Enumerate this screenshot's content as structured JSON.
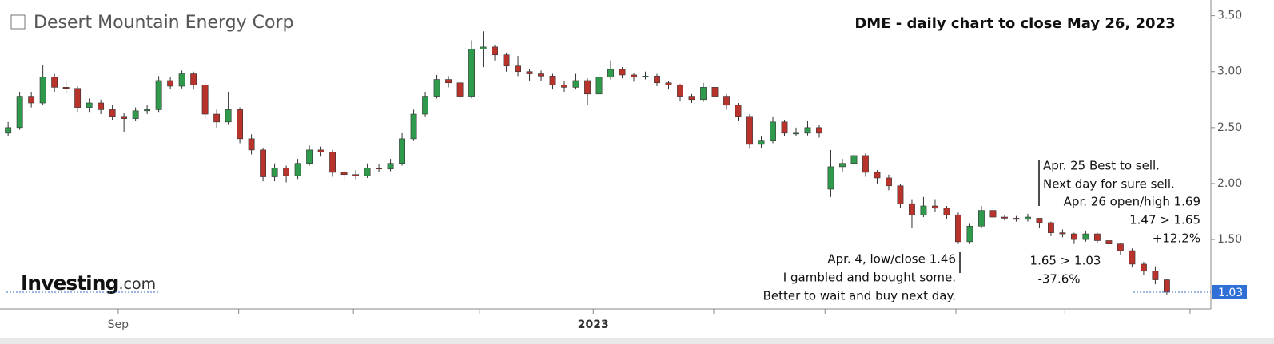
{
  "chart_data": {
    "type": "candlestick",
    "title": "Desert Mountain Energy Corp",
    "subtitle": "DME - daily chart to close May 26, 2023",
    "logo": {
      "name": "Investing",
      "suffix": ".com"
    },
    "up_color": "#2f9a4c",
    "down_color": "#b8332b",
    "ylim": [
      0.88,
      3.64
    ],
    "yticks": [
      {
        "value": 1.5,
        "label": "1.50"
      },
      {
        "value": 2,
        "label": "2.00"
      },
      {
        "value": 2.5,
        "label": "2.50"
      },
      {
        "value": 3,
        "label": "3.00"
      },
      {
        "value": 3.5,
        "label": "3.50"
      }
    ],
    "xlim": [
      -0.7,
      103.8
    ],
    "xticks": [
      {
        "value": 9.5,
        "label": "Sep"
      },
      {
        "value": 19.9,
        "label": null
      },
      {
        "value": 29.8,
        "label": null
      },
      {
        "value": 40.7,
        "label": null
      },
      {
        "value": 50.5,
        "label": "2023"
      },
      {
        "value": 60.9,
        "label": null
      },
      {
        "value": 70.5,
        "label": null
      },
      {
        "value": 81.8,
        "label": null
      },
      {
        "value": 91.2,
        "label": null
      },
      {
        "value": 102,
        "label": null
      }
    ],
    "last_value": 1.03,
    "ohlc": [
      [
        2.45,
        2.55,
        2.42,
        2.5
      ],
      [
        2.5,
        2.82,
        2.48,
        2.78
      ],
      [
        2.78,
        2.82,
        2.68,
        2.72
      ],
      [
        2.72,
        3.06,
        2.7,
        2.95
      ],
      [
        2.95,
        2.98,
        2.82,
        2.86
      ],
      [
        2.86,
        2.92,
        2.8,
        2.85
      ],
      [
        2.85,
        2.87,
        2.64,
        2.68
      ],
      [
        2.68,
        2.76,
        2.64,
        2.72
      ],
      [
        2.72,
        2.75,
        2.62,
        2.66
      ],
      [
        2.66,
        2.7,
        2.57,
        2.6
      ],
      [
        2.6,
        2.63,
        2.46,
        2.58
      ],
      [
        2.58,
        2.68,
        2.56,
        2.65
      ],
      [
        2.65,
        2.7,
        2.62,
        2.66
      ],
      [
        2.66,
        2.96,
        2.64,
        2.92
      ],
      [
        2.92,
        2.95,
        2.84,
        2.87
      ],
      [
        2.87,
        3.01,
        2.85,
        2.98
      ],
      [
        2.98,
        3.0,
        2.84,
        2.88
      ],
      [
        2.88,
        2.9,
        2.58,
        2.62
      ],
      [
        2.62,
        2.66,
        2.5,
        2.55
      ],
      [
        2.55,
        2.82,
        2.53,
        2.66
      ],
      [
        2.66,
        2.68,
        2.36,
        2.4
      ],
      [
        2.4,
        2.44,
        2.26,
        2.3
      ],
      [
        2.3,
        2.32,
        2.02,
        2.06
      ],
      [
        2.06,
        2.18,
        2.02,
        2.14
      ],
      [
        2.14,
        2.16,
        2.01,
        2.07
      ],
      [
        2.07,
        2.22,
        2.04,
        2.18
      ],
      [
        2.18,
        2.34,
        2.16,
        2.3
      ],
      [
        2.3,
        2.33,
        2.24,
        2.28
      ],
      [
        2.28,
        2.3,
        2.06,
        2.1
      ],
      [
        2.1,
        2.12,
        2.03,
        2.08
      ],
      [
        2.08,
        2.12,
        2.04,
        2.07
      ],
      [
        2.07,
        2.18,
        2.05,
        2.14
      ],
      [
        2.14,
        2.17,
        2.1,
        2.13
      ],
      [
        2.13,
        2.22,
        2.11,
        2.18
      ],
      [
        2.18,
        2.45,
        2.16,
        2.4
      ],
      [
        2.4,
        2.66,
        2.38,
        2.62
      ],
      [
        2.62,
        2.82,
        2.6,
        2.78
      ],
      [
        2.78,
        2.97,
        2.76,
        2.93
      ],
      [
        2.93,
        2.96,
        2.86,
        2.9
      ],
      [
        2.9,
        2.92,
        2.74,
        2.78
      ],
      [
        2.78,
        3.28,
        2.76,
        3.2
      ],
      [
        3.2,
        3.36,
        3.04,
        3.22
      ],
      [
        3.22,
        3.24,
        3.1,
        3.15
      ],
      [
        3.15,
        3.17,
        3.0,
        3.05
      ],
      [
        3.05,
        3.14,
        2.96,
        3.0
      ],
      [
        3.0,
        3.02,
        2.92,
        2.98
      ],
      [
        2.98,
        3.01,
        2.92,
        2.96
      ],
      [
        2.96,
        2.98,
        2.84,
        2.88
      ],
      [
        2.88,
        2.92,
        2.82,
        2.86
      ],
      [
        2.86,
        2.98,
        2.84,
        2.92
      ],
      [
        2.92,
        2.94,
        2.7,
        2.8
      ],
      [
        2.8,
        2.99,
        2.78,
        2.95
      ],
      [
        2.95,
        3.1,
        2.93,
        3.02
      ],
      [
        3.02,
        3.04,
        2.94,
        2.97
      ],
      [
        2.97,
        2.99,
        2.91,
        2.95
      ],
      [
        2.95,
        3.0,
        2.93,
        2.96
      ],
      [
        2.96,
        2.98,
        2.87,
        2.9
      ],
      [
        2.9,
        2.92,
        2.84,
        2.88
      ],
      [
        2.88,
        2.89,
        2.74,
        2.78
      ],
      [
        2.78,
        2.8,
        2.72,
        2.75
      ],
      [
        2.75,
        2.9,
        2.73,
        2.86
      ],
      [
        2.86,
        2.88,
        2.74,
        2.78
      ],
      [
        2.78,
        2.8,
        2.66,
        2.7
      ],
      [
        2.7,
        2.72,
        2.56,
        2.6
      ],
      [
        2.6,
        2.62,
        2.31,
        2.35
      ],
      [
        2.35,
        2.42,
        2.32,
        2.38
      ],
      [
        2.38,
        2.6,
        2.36,
        2.55
      ],
      [
        2.55,
        2.57,
        2.42,
        2.45
      ],
      [
        2.45,
        2.5,
        2.42,
        2.45
      ],
      [
        2.45,
        2.56,
        2.43,
        2.5
      ],
      [
        2.5,
        2.52,
        2.41,
        2.45
      ],
      [
        1.95,
        2.3,
        1.88,
        2.15
      ],
      [
        2.15,
        2.22,
        2.1,
        2.18
      ],
      [
        2.18,
        2.28,
        2.15,
        2.25
      ],
      [
        2.25,
        2.27,
        2.06,
        2.1
      ],
      [
        2.1,
        2.12,
        2.0,
        2.05
      ],
      [
        2.05,
        2.08,
        1.94,
        1.98
      ],
      [
        1.98,
        2.0,
        1.78,
        1.82
      ],
      [
        1.82,
        1.86,
        1.6,
        1.72
      ],
      [
        1.72,
        1.88,
        1.7,
        1.8
      ],
      [
        1.8,
        1.86,
        1.75,
        1.78
      ],
      [
        1.78,
        1.8,
        1.68,
        1.72
      ],
      [
        1.72,
        1.74,
        1.46,
        1.48
      ],
      [
        1.48,
        1.64,
        1.46,
        1.62
      ],
      [
        1.62,
        1.8,
        1.6,
        1.76
      ],
      [
        1.76,
        1.78,
        1.68,
        1.7
      ],
      [
        1.7,
        1.72,
        1.67,
        1.69
      ],
      [
        1.69,
        1.71,
        1.66,
        1.68
      ],
      [
        1.68,
        1.73,
        1.66,
        1.7
      ],
      [
        1.69,
        1.69,
        1.6,
        1.65
      ],
      [
        1.65,
        1.66,
        1.53,
        1.56
      ],
      [
        1.56,
        1.59,
        1.52,
        1.55
      ],
      [
        1.55,
        1.56,
        1.46,
        1.5
      ],
      [
        1.5,
        1.58,
        1.48,
        1.55
      ],
      [
        1.55,
        1.56,
        1.47,
        1.49
      ],
      [
        1.49,
        1.5,
        1.43,
        1.46
      ],
      [
        1.46,
        1.47,
        1.36,
        1.4
      ],
      [
        1.4,
        1.42,
        1.25,
        1.28
      ],
      [
        1.28,
        1.3,
        1.18,
        1.22
      ],
      [
        1.22,
        1.26,
        1.1,
        1.14
      ],
      [
        1.14,
        1.15,
        1.01,
        1.03
      ]
    ],
    "annotations": [
      {
        "lines": [
          "Apr. 25 Best to sell.",
          "Next day for sure sell."
        ]
      },
      {
        "lines": [
          "Apr. 26 open/high 1.69",
          "1.47 > 1.65",
          "+12.2%"
        ]
      },
      {
        "lines": [
          "1.65 > 1.03",
          "-37.6%"
        ]
      },
      {
        "lines": [
          "Apr. 4, low/close 1.46",
          "I gambled and bought some.",
          "Better to wait and buy next day."
        ]
      }
    ]
  }
}
